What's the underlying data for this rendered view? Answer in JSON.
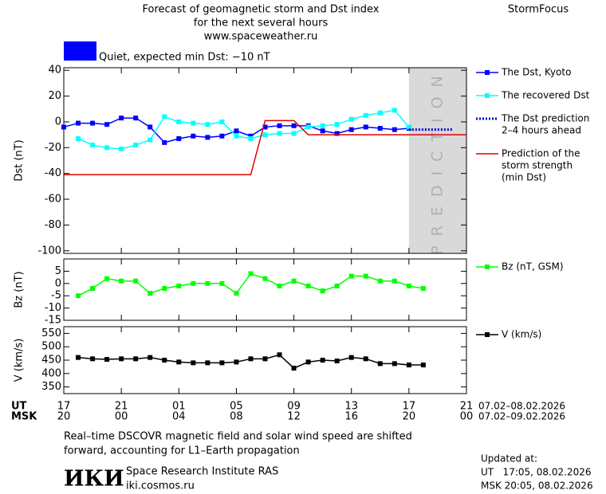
{
  "header": {
    "title": [
      "Forecast of geomagnetic storm and Dst index",
      "for the next several hours",
      "www.spaceweather.ru"
    ],
    "brand": "StormFocus",
    "status": "Quiet, expected min Dst: −10 nT",
    "status_color": "#0000ff"
  },
  "chart_data": [
    {
      "type": "line",
      "y_label": "Dst (nT)",
      "xlim": [
        0,
        28
      ],
      "ylim": [
        -102,
        42
      ],
      "yticks": [
        -100,
        -80,
        -60,
        -40,
        -20,
        0,
        20,
        40
      ],
      "prediction_zone": {
        "label": "PREDICTION",
        "from": 24,
        "color": "#d9d9d9"
      },
      "series": [
        {
          "name": [
            "The Dst, Kyoto"
          ],
          "color": "#0000ff",
          "marker": true,
          "x": [
            0,
            1,
            2,
            3,
            4,
            5,
            6,
            7,
            8,
            9,
            10,
            11,
            12,
            13,
            14,
            15,
            16,
            17,
            18,
            19,
            20,
            21,
            22,
            23,
            24
          ],
          "values": [
            -4,
            -1,
            -1,
            -2,
            3,
            3,
            -4,
            -16,
            -13,
            -11,
            -12,
            -11,
            -7,
            -11,
            -4,
            -3,
            -3,
            -3,
            -7,
            -9,
            -6,
            -4,
            -5,
            -6,
            -5
          ]
        },
        {
          "name": [
            "The recovered Dst"
          ],
          "color": "#00ffff",
          "marker": true,
          "x": [
            1,
            2,
            3,
            4,
            5,
            6,
            7,
            8,
            9,
            10,
            11,
            12,
            13,
            14,
            15,
            16,
            17,
            18,
            19,
            20,
            21,
            22,
            23,
            24
          ],
          "values": [
            -13,
            -18,
            -20,
            -21,
            -18,
            -14,
            4,
            0,
            -1,
            -2,
            0,
            -11,
            -13,
            -10,
            -9,
            -9,
            -4,
            -3,
            -2,
            2,
            5,
            7,
            9,
            -4
          ]
        },
        {
          "name": [
            "The Dst prediction",
            "2–4 hours ahead"
          ],
          "color": "#0000cc",
          "dotted": true,
          "x": [
            24,
            27
          ],
          "values": [
            -6,
            -6
          ]
        },
        {
          "name": [
            "Prediction of the",
            "storm strength",
            "(min Dst)"
          ],
          "color": "#dd0000",
          "x": [
            0,
            13,
            14,
            16,
            17,
            28
          ],
          "values": [
            -41,
            -41,
            1,
            1,
            -10,
            -10
          ]
        }
      ]
    },
    {
      "type": "line",
      "y_label": "Bz (nT)",
      "xlim": [
        0,
        28
      ],
      "ylim": [
        -15,
        10
      ],
      "yticks": [
        -15,
        -10,
        -5,
        0,
        5
      ],
      "series": [
        {
          "name": [
            "Bz (nT, GSM)"
          ],
          "color": "#00ff00",
          "marker": true,
          "x": [
            1,
            2,
            3,
            4,
            5,
            6,
            7,
            8,
            9,
            10,
            11,
            12,
            13,
            14,
            15,
            16,
            17,
            18,
            19,
            20,
            21,
            22,
            23,
            24,
            25
          ],
          "values": [
            -5,
            -2,
            2,
            1,
            1,
            -4,
            -2,
            -1,
            0,
            0,
            0,
            -4,
            4,
            2,
            -1,
            1,
            -1,
            -3,
            -1,
            3,
            3,
            1,
            1,
            -1,
            -2
          ]
        }
      ]
    },
    {
      "type": "line",
      "y_label": "V (km/s)",
      "xlim": [
        0,
        28
      ],
      "ylim": [
        325,
        575
      ],
      "yticks": [
        350,
        400,
        450,
        500,
        550
      ],
      "xticks": [
        {
          "value": 0,
          "label": "17"
        },
        {
          "value": 4,
          "label": "21"
        },
        {
          "value": 8,
          "label": "01"
        },
        {
          "value": 12,
          "label": "05"
        },
        {
          "value": 16,
          "label": "09"
        },
        {
          "value": 20,
          "label": "13"
        },
        {
          "value": 24,
          "label": "17"
        },
        {
          "value": 28,
          "label": "21"
        }
      ],
      "xticks_msk": [
        {
          "value": 0,
          "label": "20"
        },
        {
          "value": 4,
          "label": "00"
        },
        {
          "value": 8,
          "label": "04"
        },
        {
          "value": 12,
          "label": "08"
        },
        {
          "value": 16,
          "label": "12"
        },
        {
          "value": 20,
          "label": "16"
        },
        {
          "value": 24,
          "label": "20"
        },
        {
          "value": 28,
          "label": "00"
        }
      ],
      "x_label_ut": "UT",
      "x_label_msk": "MSK",
      "date_ut": "07.02–08.02.2026",
      "date_msk": "07.02–09.02.2026",
      "series": [
        {
          "name": [
            "V (km/s)"
          ],
          "color": "#000000",
          "marker": true,
          "x": [
            1,
            2,
            3,
            4,
            5,
            6,
            7,
            8,
            9,
            10,
            11,
            12,
            13,
            14,
            15,
            16,
            17,
            18,
            19,
            20,
            21,
            22,
            23,
            24,
            25
          ],
          "values": [
            460,
            455,
            453,
            455,
            455,
            460,
            450,
            443,
            440,
            440,
            440,
            443,
            455,
            455,
            470,
            420,
            443,
            450,
            447,
            460,
            455,
            437,
            437,
            432,
            432
          ]
        }
      ]
    }
  ],
  "footer": {
    "note": [
      "Real–time DSCOVR magnetic field and solar wind speed are shifted",
      "forward, accounting for L1–Earth propagation"
    ],
    "logo": "ИКИ",
    "institute": "Space Research Institute RAS",
    "site": "iki.cosmos.ru",
    "updated": [
      "Updated at:",
      "UT   17:05, 08.02.2026",
      "MSK 20:05, 08.02.2026"
    ]
  }
}
